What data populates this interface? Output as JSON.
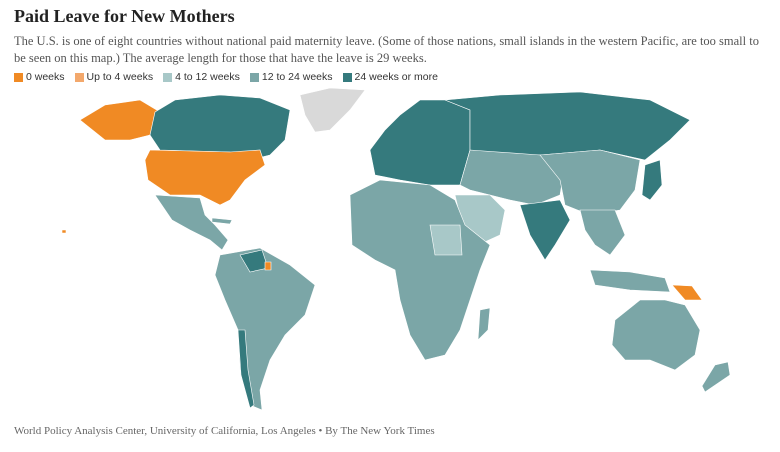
{
  "title": "Paid Leave for New Mothers",
  "subtitle": "The U.S. is one of eight countries without national paid maternity leave. (Some of those nations, small islands in the western Pacific, are too small to be seen on this map.) The average length for those that have the leave is 29 weeks.",
  "legend": [
    {
      "label": "0 weeks",
      "color": "#f08a24"
    },
    {
      "label": "Up to 4 weeks",
      "color": "#f3a86c"
    },
    {
      "label": "4 to 12 weeks",
      "color": "#a8c8c8"
    },
    {
      "label": "12 to 24 weeks",
      "color": "#7ba6a7"
    },
    {
      "label": "24 weeks or more",
      "color": "#357a7d"
    }
  ],
  "source": "World Policy Analysis Center, University of California, Los Angeles • By The New York Times"
}
